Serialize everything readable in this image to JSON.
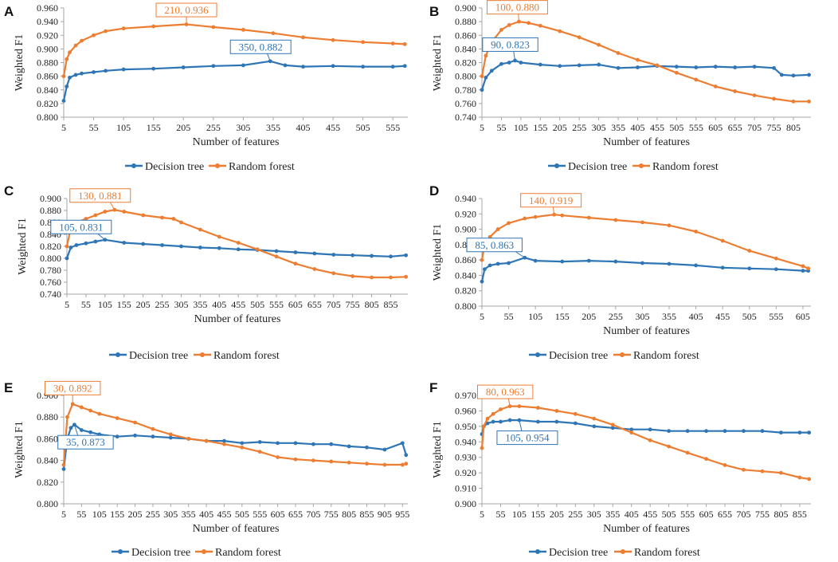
{
  "figure": {
    "series_names": [
      "Decision tree",
      "Random forest"
    ],
    "colors": {
      "decision_tree": "#2e75b6",
      "random_forest": "#ed7d31",
      "axis": "#a6a6a6",
      "text": "#222222"
    }
  },
  "chart_data": [
    {
      "panel": "A",
      "type": "line",
      "xlabel": "Number of features",
      "ylabel": "Weighted F1",
      "xlim": [
        5,
        580
      ],
      "ylim": [
        0.8,
        0.96
      ],
      "xticks": [
        5,
        55,
        105,
        155,
        205,
        255,
        305,
        355,
        405,
        455,
        505,
        555
      ],
      "yticks": [
        0.8,
        0.82,
        0.84,
        0.86,
        0.88,
        0.9,
        0.92,
        0.94,
        0.96
      ],
      "ytick_labels": [
        "0.800",
        "0.820",
        "0.840",
        "0.860",
        "0.880",
        "0.900",
        "0.920",
        "0.940",
        "0.960"
      ],
      "series": [
        {
          "name": "Decision tree",
          "color": "#2e75b6",
          "x": [
            5,
            10,
            15,
            25,
            35,
            55,
            75,
            105,
            155,
            205,
            255,
            305,
            350,
            375,
            405,
            455,
            505,
            555,
            575
          ],
          "y": [
            0.824,
            0.845,
            0.858,
            0.862,
            0.864,
            0.866,
            0.868,
            0.87,
            0.871,
            0.873,
            0.875,
            0.876,
            0.882,
            0.876,
            0.874,
            0.875,
            0.874,
            0.874,
            0.875
          ]
        },
        {
          "name": "Random forest",
          "color": "#ed7d31",
          "x": [
            5,
            10,
            15,
            25,
            35,
            55,
            75,
            105,
            155,
            210,
            255,
            305,
            355,
            405,
            455,
            505,
            555,
            575
          ],
          "y": [
            0.86,
            0.885,
            0.895,
            0.905,
            0.912,
            0.92,
            0.926,
            0.93,
            0.933,
            0.936,
            0.932,
            0.928,
            0.923,
            0.917,
            0.913,
            0.91,
            0.908,
            0.907
          ]
        }
      ],
      "annotations": [
        {
          "text": "210, 0.936",
          "series": "Random forest",
          "x": 210,
          "y": 0.936
        },
        {
          "text": "350, 0.882",
          "series": "Decision tree",
          "x": 350,
          "y": 0.882
        }
      ]
    },
    {
      "panel": "B",
      "type": "line",
      "xlabel": "Number of features",
      "ylabel": "Weighted F1",
      "xlim": [
        5,
        850
      ],
      "ylim": [
        0.74,
        0.9
      ],
      "xticks": [
        5,
        55,
        105,
        155,
        205,
        255,
        305,
        355,
        405,
        455,
        505,
        555,
        605,
        655,
        705,
        755,
        805
      ],
      "yticks": [
        0.74,
        0.76,
        0.78,
        0.8,
        0.82,
        0.84,
        0.86,
        0.88,
        0.9
      ],
      "ytick_labels": [
        "0.740",
        "0.760",
        "0.780",
        "0.800",
        "0.820",
        "0.840",
        "0.860",
        "0.880",
        "0.900"
      ],
      "series": [
        {
          "name": "Decision tree",
          "color": "#2e75b6",
          "x": [
            5,
            15,
            30,
            55,
            75,
            90,
            105,
            155,
            205,
            255,
            305,
            355,
            405,
            455,
            505,
            555,
            605,
            655,
            705,
            755,
            775,
            805,
            845
          ],
          "y": [
            0.78,
            0.798,
            0.808,
            0.818,
            0.82,
            0.823,
            0.82,
            0.817,
            0.815,
            0.816,
            0.817,
            0.812,
            0.813,
            0.815,
            0.814,
            0.813,
            0.814,
            0.813,
            0.814,
            0.812,
            0.802,
            0.801,
            0.802
          ]
        },
        {
          "name": "Random forest",
          "color": "#ed7d31",
          "x": [
            5,
            15,
            30,
            55,
            75,
            100,
            125,
            155,
            205,
            255,
            305,
            355,
            405,
            455,
            505,
            555,
            605,
            655,
            705,
            755,
            805,
            845
          ],
          "y": [
            0.8,
            0.83,
            0.85,
            0.868,
            0.875,
            0.88,
            0.878,
            0.874,
            0.866,
            0.857,
            0.846,
            0.834,
            0.824,
            0.816,
            0.805,
            0.795,
            0.785,
            0.778,
            0.772,
            0.767,
            0.763,
            0.763
          ]
        }
      ],
      "annotations": [
        {
          "text": "100, 0.880",
          "series": "Random forest",
          "x": 100,
          "y": 0.88
        },
        {
          "text": "90, 0.823",
          "series": "Decision tree",
          "x": 90,
          "y": 0.823
        }
      ]
    },
    {
      "panel": "C",
      "type": "line",
      "xlabel": "Number of features",
      "ylabel": "Weighted F1",
      "xlim": [
        5,
        900
      ],
      "ylim": [
        0.74,
        0.9
      ],
      "xticks": [
        5,
        55,
        105,
        155,
        205,
        255,
        305,
        355,
        405,
        455,
        505,
        555,
        605,
        655,
        705,
        755,
        805,
        855
      ],
      "yticks": [
        0.74,
        0.76,
        0.78,
        0.8,
        0.82,
        0.84,
        0.86,
        0.88,
        0.9
      ],
      "ytick_labels": [
        "0.740",
        "0.760",
        "0.780",
        "0.800",
        "0.820",
        "0.840",
        "0.860",
        "0.880",
        "0.900"
      ],
      "series": [
        {
          "name": "Decision tree",
          "color": "#2e75b6",
          "x": [
            5,
            15,
            30,
            55,
            80,
            105,
            155,
            205,
            255,
            305,
            355,
            405,
            455,
            505,
            555,
            605,
            655,
            705,
            755,
            805,
            855,
            895
          ],
          "y": [
            0.8,
            0.818,
            0.822,
            0.825,
            0.828,
            0.831,
            0.826,
            0.824,
            0.822,
            0.82,
            0.818,
            0.817,
            0.815,
            0.814,
            0.812,
            0.81,
            0.808,
            0.806,
            0.805,
            0.804,
            0.803,
            0.805
          ]
        },
        {
          "name": "Random forest",
          "color": "#ed7d31",
          "x": [
            5,
            15,
            30,
            55,
            80,
            105,
            130,
            155,
            205,
            255,
            285,
            305,
            355,
            405,
            455,
            505,
            555,
            605,
            655,
            705,
            755,
            805,
            855,
            895
          ],
          "y": [
            0.82,
            0.85,
            0.86,
            0.866,
            0.872,
            0.878,
            0.881,
            0.878,
            0.872,
            0.868,
            0.866,
            0.86,
            0.848,
            0.836,
            0.826,
            0.815,
            0.803,
            0.791,
            0.782,
            0.775,
            0.77,
            0.768,
            0.768,
            0.769
          ]
        }
      ],
      "annotations": [
        {
          "text": "130, 0.881",
          "series": "Random forest",
          "x": 130,
          "y": 0.881
        },
        {
          "text": "105, 0.831",
          "series": "Decision tree",
          "x": 105,
          "y": 0.831
        }
      ]
    },
    {
      "panel": "D",
      "type": "line",
      "xlabel": "Number of features",
      "ylabel": "Weighted F1",
      "xlim": [
        5,
        620
      ],
      "ylim": [
        0.8,
        0.94
      ],
      "xticks": [
        5,
        55,
        105,
        155,
        205,
        255,
        305,
        355,
        405,
        455,
        505,
        555,
        605
      ],
      "yticks": [
        0.8,
        0.82,
        0.84,
        0.86,
        0.88,
        0.9,
        0.92,
        0.94
      ],
      "ytick_labels": [
        "0.800",
        "0.820",
        "0.840",
        "0.860",
        "0.880",
        "0.900",
        "0.920",
        "0.940"
      ],
      "series": [
        {
          "name": "Decision tree",
          "color": "#2e75b6",
          "x": [
            5,
            10,
            20,
            35,
            55,
            85,
            105,
            155,
            205,
            255,
            305,
            355,
            405,
            455,
            505,
            555,
            605,
            615
          ],
          "y": [
            0.832,
            0.848,
            0.853,
            0.855,
            0.856,
            0.863,
            0.859,
            0.858,
            0.859,
            0.858,
            0.856,
            0.855,
            0.853,
            0.85,
            0.849,
            0.848,
            0.846,
            0.846
          ]
        },
        {
          "name": "Random forest",
          "color": "#ed7d31",
          "x": [
            5,
            10,
            20,
            35,
            55,
            85,
            105,
            140,
            155,
            205,
            255,
            305,
            355,
            405,
            455,
            505,
            555,
            605,
            615
          ],
          "y": [
            0.86,
            0.88,
            0.89,
            0.9,
            0.908,
            0.914,
            0.916,
            0.919,
            0.918,
            0.915,
            0.912,
            0.909,
            0.905,
            0.897,
            0.885,
            0.872,
            0.862,
            0.852,
            0.849
          ]
        }
      ],
      "annotations": [
        {
          "text": "140, 0.919",
          "series": "Random forest",
          "x": 140,
          "y": 0.919
        },
        {
          "text": "85, 0.863",
          "series": "Decision tree",
          "x": 85,
          "y": 0.863
        }
      ]
    },
    {
      "panel": "E",
      "type": "line",
      "xlabel": "Number of features",
      "ylabel": "Weighted F1",
      "xlim": [
        5,
        970
      ],
      "ylim": [
        0.8,
        0.9
      ],
      "xticks": [
        5,
        55,
        105,
        155,
        205,
        255,
        305,
        355,
        405,
        455,
        505,
        555,
        605,
        655,
        705,
        755,
        805,
        855,
        905,
        955
      ],
      "yticks": [
        0.8,
        0.82,
        0.84,
        0.86,
        0.88,
        0.9
      ],
      "ytick_labels": [
        "0.800",
        "0.820",
        "0.840",
        "0.860",
        "0.880",
        "0.900"
      ],
      "series": [
        {
          "name": "Decision tree",
          "color": "#2e75b6",
          "x": [
            5,
            15,
            25,
            35,
            55,
            80,
            105,
            155,
            205,
            255,
            305,
            355,
            405,
            455,
            505,
            555,
            605,
            655,
            705,
            755,
            805,
            855,
            905,
            955,
            965
          ],
          "y": [
            0.832,
            0.86,
            0.87,
            0.873,
            0.868,
            0.866,
            0.864,
            0.862,
            0.863,
            0.862,
            0.861,
            0.86,
            0.858,
            0.858,
            0.856,
            0.857,
            0.856,
            0.856,
            0.855,
            0.855,
            0.853,
            0.852,
            0.85,
            0.856,
            0.845
          ]
        },
        {
          "name": "Random forest",
          "color": "#ed7d31",
          "x": [
            5,
            15,
            30,
            55,
            80,
            105,
            155,
            205,
            255,
            305,
            355,
            405,
            455,
            505,
            555,
            605,
            655,
            705,
            755,
            805,
            855,
            905,
            955,
            965
          ],
          "y": [
            0.836,
            0.88,
            0.892,
            0.889,
            0.886,
            0.883,
            0.879,
            0.875,
            0.869,
            0.864,
            0.86,
            0.858,
            0.855,
            0.852,
            0.848,
            0.843,
            0.841,
            0.84,
            0.839,
            0.838,
            0.837,
            0.836,
            0.836,
            0.837
          ]
        }
      ],
      "annotations": [
        {
          "text": "30, 0.892",
          "series": "Random forest",
          "x": 30,
          "y": 0.892
        },
        {
          "text": "35, 0.873",
          "series": "Decision tree",
          "x": 35,
          "y": 0.873
        }
      ]
    },
    {
      "panel": "F",
      "type": "line",
      "xlabel": "Number of features",
      "ylabel": "Weighted F1",
      "xlim": [
        5,
        885
      ],
      "ylim": [
        0.9,
        0.97
      ],
      "xticks": [
        5,
        55,
        105,
        155,
        205,
        255,
        305,
        355,
        405,
        455,
        505,
        555,
        605,
        655,
        705,
        755,
        805,
        855
      ],
      "yticks": [
        0.9,
        0.91,
        0.92,
        0.93,
        0.94,
        0.95,
        0.96,
        0.97
      ],
      "ytick_labels": [
        "0.900",
        "0.910",
        "0.920",
        "0.930",
        "0.940",
        "0.950",
        "0.960",
        "0.970"
      ],
      "series": [
        {
          "name": "Decision tree",
          "color": "#2e75b6",
          "x": [
            5,
            10,
            20,
            35,
            55,
            80,
            105,
            155,
            205,
            255,
            305,
            355,
            405,
            455,
            505,
            555,
            605,
            655,
            705,
            755,
            805,
            855,
            880
          ],
          "y": [
            0.945,
            0.95,
            0.952,
            0.953,
            0.953,
            0.954,
            0.954,
            0.953,
            0.953,
            0.952,
            0.95,
            0.949,
            0.948,
            0.948,
            0.947,
            0.947,
            0.947,
            0.947,
            0.947,
            0.947,
            0.946,
            0.946,
            0.946
          ]
        },
        {
          "name": "Random forest",
          "color": "#ed7d31",
          "x": [
            5,
            10,
            20,
            35,
            55,
            80,
            105,
            155,
            205,
            255,
            305,
            355,
            405,
            455,
            505,
            555,
            605,
            655,
            705,
            755,
            805,
            855,
            880
          ],
          "y": [
            0.936,
            0.95,
            0.955,
            0.958,
            0.961,
            0.963,
            0.963,
            0.962,
            0.96,
            0.958,
            0.955,
            0.951,
            0.946,
            0.941,
            0.937,
            0.933,
            0.929,
            0.925,
            0.922,
            0.921,
            0.92,
            0.917,
            0.916
          ]
        }
      ],
      "annotations": [
        {
          "text": "80, 0.963",
          "series": "Random forest",
          "x": 80,
          "y": 0.963
        },
        {
          "text": "105, 0.954",
          "series": "Decision tree",
          "x": 105,
          "y": 0.954
        }
      ]
    }
  ]
}
